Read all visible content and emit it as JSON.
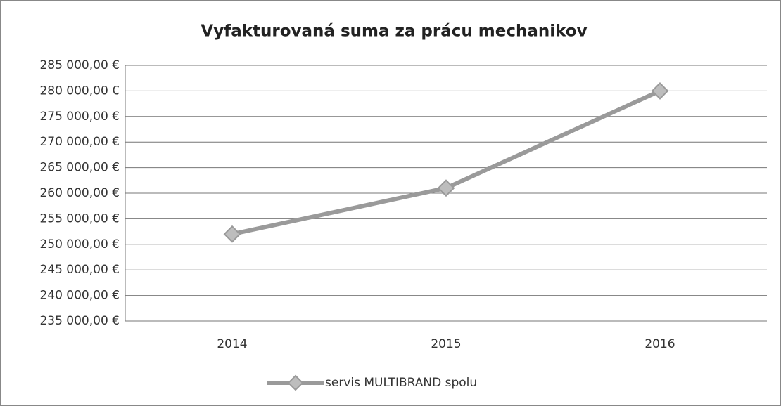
{
  "chart_data": {
    "type": "line",
    "title": "Vyfakturovaná suma za prácu mechanikov",
    "categories": [
      "2014",
      "2015",
      "2016"
    ],
    "series": [
      {
        "name": "servis MULTIBRAND spolu",
        "color": "#9a9a9a",
        "values": [
          252000,
          261000,
          280000
        ]
      }
    ],
    "ylim": [
      235000,
      285000
    ],
    "yticks": [
      {
        "value": 235000,
        "label": "235 000,00 €"
      },
      {
        "value": 240000,
        "label": "240 000,00 €"
      },
      {
        "value": 245000,
        "label": "245 000,00 €"
      },
      {
        "value": 250000,
        "label": "250 000,00 €"
      },
      {
        "value": 255000,
        "label": "255 000,00 €"
      },
      {
        "value": 260000,
        "label": "260 000,00 €"
      },
      {
        "value": 265000,
        "label": "265 000,00 €"
      },
      {
        "value": 270000,
        "label": "270 000,00 €"
      },
      {
        "value": 275000,
        "label": "275 000,00 €"
      },
      {
        "value": 280000,
        "label": "280 000,00 €"
      },
      {
        "value": 285000,
        "label": "285 000,00 €"
      }
    ],
    "grid": true,
    "legend": "bottom"
  }
}
